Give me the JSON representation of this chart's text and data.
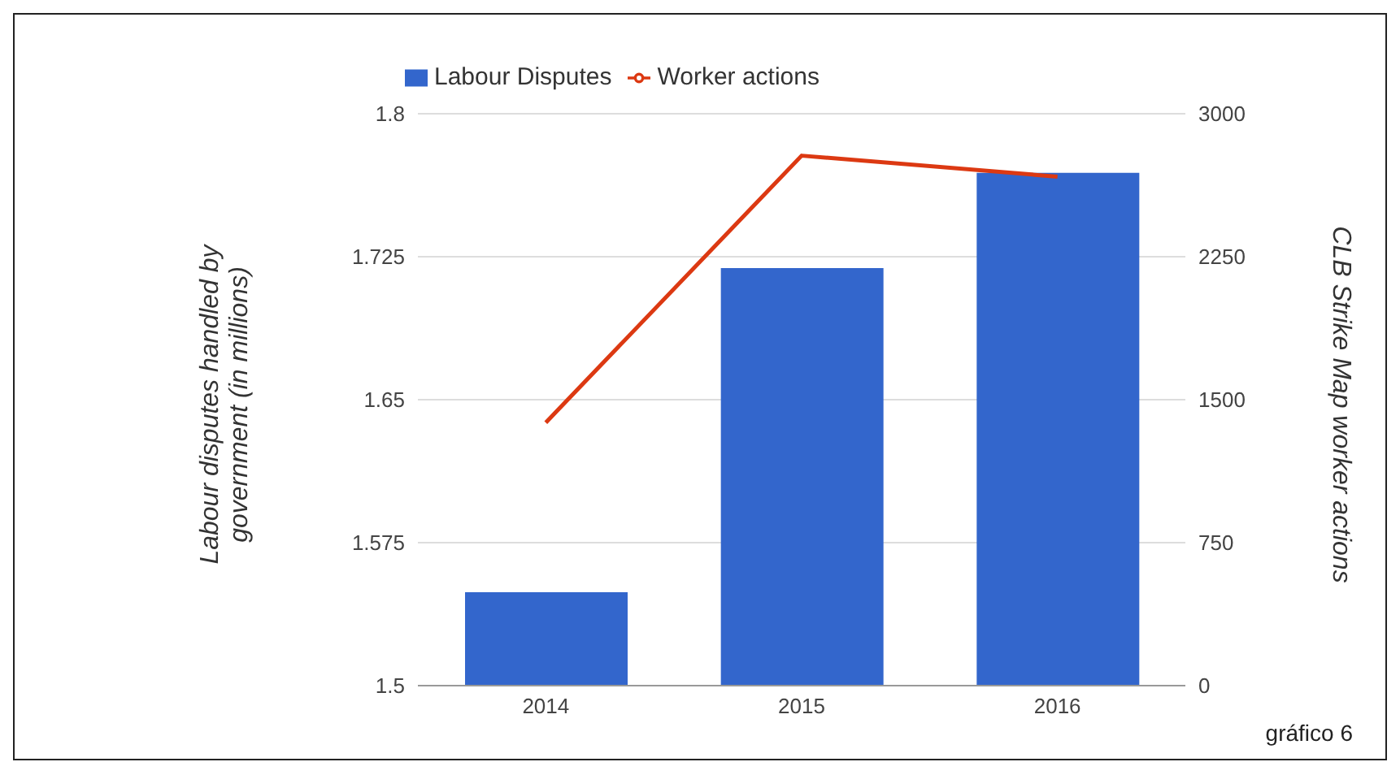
{
  "chart_data": {
    "type": "bar",
    "categories": [
      "2014",
      "2015",
      "2016"
    ],
    "series": [
      {
        "name": "Labour Disputes",
        "color": "#3366cc",
        "values": [
          1.549,
          1.719,
          1.769
        ]
      },
      {
        "name": "Worker actions",
        "type": "line",
        "axis": "y2",
        "color": "#dc3912",
        "values": [
          1380,
          2780,
          2670
        ]
      }
    ],
    "ylabel": "Labour disputes handled by government (in millions)",
    "y2label": "CLB Strike Map worker actions",
    "ylim": [
      1.5,
      1.8
    ],
    "yticks": [
      1.5,
      1.575,
      1.65,
      1.725,
      1.8
    ],
    "y2lim": [
      0,
      3000
    ],
    "y2ticks": [
      0,
      750,
      1500,
      2250,
      3000
    ],
    "grid": "y",
    "legend": "top",
    "marker": "none",
    "annotations": [
      "gráfico 6"
    ]
  }
}
